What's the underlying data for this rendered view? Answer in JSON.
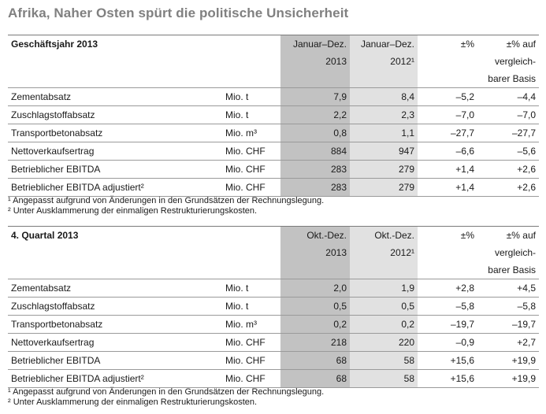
{
  "title": "Afrika, Naher Osten spürt die politische Unsicherheit",
  "tables": [
    {
      "heading": "Geschäftsjahr 2013",
      "col_dark": [
        "Januar–Dez.",
        "2013"
      ],
      "col_light": [
        "Januar–Dez.",
        "2012¹"
      ],
      "col_pct": "±%",
      "col_pct_basis": [
        "±% auf",
        "vergleich-",
        "barer Basis"
      ],
      "rows": [
        {
          "label": "Zementabsatz",
          "unit": "Mio. t",
          "v1": "7,9",
          "v2": "8,4",
          "pct": "–5,2",
          "basis": "–4,4"
        },
        {
          "label": "Zuschlagstoffabsatz",
          "unit": "Mio. t",
          "v1": "2,2",
          "v2": "2,3",
          "pct": "–7,0",
          "basis": "–7,0"
        },
        {
          "label": "Transportbetonabsatz",
          "unit": "Mio. m³",
          "v1": "0,8",
          "v2": "1,1",
          "pct": "–27,7",
          "basis": "–27,7"
        },
        {
          "label": "Nettoverkaufsertrag",
          "unit": "Mio. CHF",
          "v1": "884",
          "v2": "947",
          "pct": "–6,6",
          "basis": "–5,6"
        },
        {
          "label": "Betrieblicher EBITDA",
          "unit": "Mio. CHF",
          "v1": "283",
          "v2": "279",
          "pct": "+1,4",
          "basis": "+2,6"
        },
        {
          "label": "Betrieblicher EBITDA adjustiert²",
          "unit": "Mio. CHF",
          "v1": "283",
          "v2": "279",
          "pct": "+1,4",
          "basis": "+2,6"
        }
      ],
      "footnotes": [
        "¹ Angepasst aufgrund von Änderungen in den Grundsätzen der Rechnungslegung.",
        "² Unter Ausklammerung der einmaligen Restrukturierungskosten."
      ]
    },
    {
      "heading": "4. Quartal 2013",
      "col_dark": [
        "Okt.-Dez.",
        "2013"
      ],
      "col_light": [
        "Okt.-Dez.",
        "2012¹"
      ],
      "col_pct": "±%",
      "col_pct_basis": [
        "±% auf",
        "vergleich-",
        "barer Basis"
      ],
      "rows": [
        {
          "label": "Zementabsatz",
          "unit": "Mio. t",
          "v1": "2,0",
          "v2": "1,9",
          "pct": "+2,8",
          "basis": "+4,5"
        },
        {
          "label": "Zuschlagstoffabsatz",
          "unit": "Mio. t",
          "v1": "0,5",
          "v2": "0,5",
          "pct": "–5,8",
          "basis": "–5,8"
        },
        {
          "label": "Transportbetonabsatz",
          "unit": "Mio. m³",
          "v1": "0,2",
          "v2": "0,2",
          "pct": "–19,7",
          "basis": "–19,7"
        },
        {
          "label": "Nettoverkaufsertrag",
          "unit": "Mio. CHF",
          "v1": "218",
          "v2": "220",
          "pct": "–0,9",
          "basis": "+2,7"
        },
        {
          "label": "Betrieblicher EBITDA",
          "unit": "Mio. CHF",
          "v1": "68",
          "v2": "58",
          "pct": "+15,6",
          "basis": "+19,9"
        },
        {
          "label": "Betrieblicher EBITDA adjustiert²",
          "unit": "Mio. CHF",
          "v1": "68",
          "v2": "58",
          "pct": "+15,6",
          "basis": "+19,9"
        }
      ],
      "footnotes": [
        "¹ Angepasst aufgrund von Änderungen in den Grundsätzen der Rechnungslegung.",
        "² Unter Ausklammerung der einmaligen Restrukturierungskosten."
      ]
    }
  ]
}
